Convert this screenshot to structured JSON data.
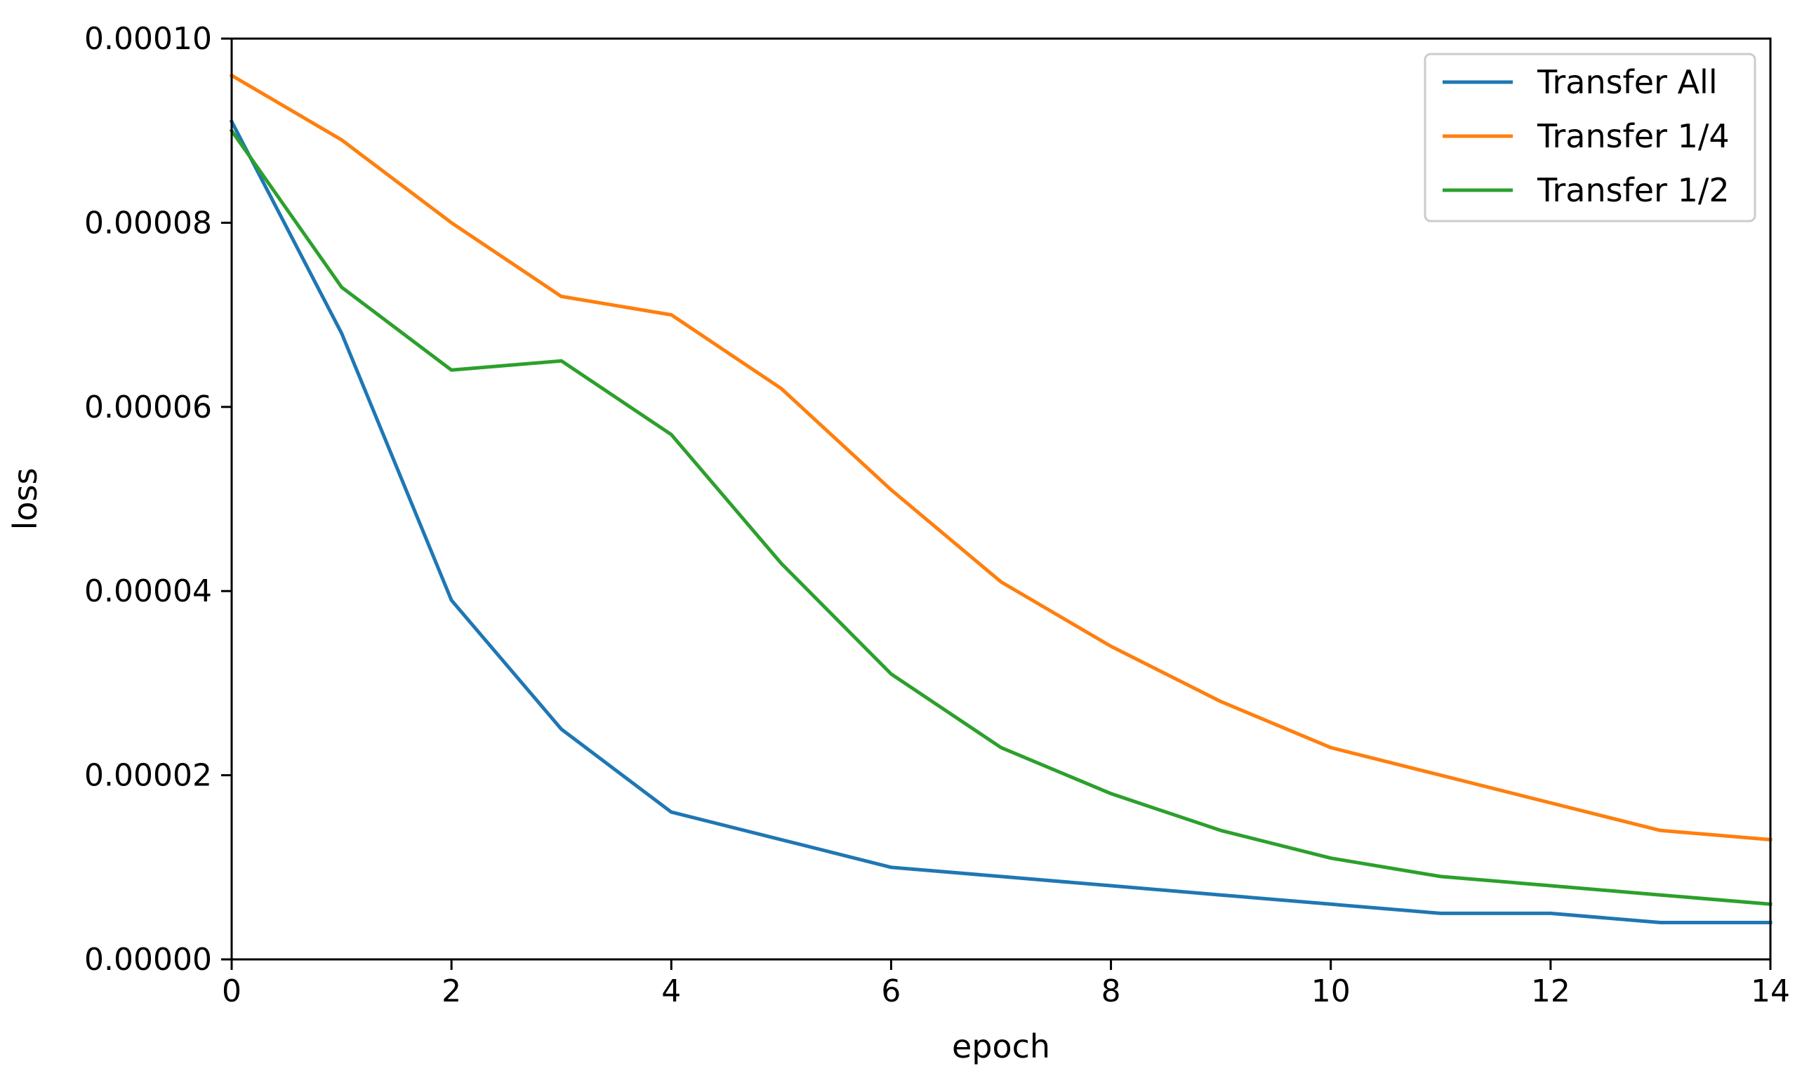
{
  "chart_data": {
    "type": "line",
    "title": "",
    "xlabel": "epoch",
    "ylabel": "loss",
    "xlim": [
      0,
      14
    ],
    "ylim": [
      0,
      0.0001
    ],
    "x_ticks": [
      "0",
      "2",
      "4",
      "6",
      "8",
      "10",
      "12",
      "14"
    ],
    "y_ticks": [
      "0.00000",
      "0.00002",
      "0.00004",
      "0.00006",
      "0.00008",
      "0.00010"
    ],
    "grid": false,
    "legend_position": "upper right",
    "x": [
      0,
      1,
      2,
      3,
      4,
      5,
      6,
      7,
      8,
      9,
      10,
      11,
      12,
      13,
      14
    ],
    "series": [
      {
        "name": "Transfer All",
        "color": "#1f77b4",
        "values": [
          9.1e-05,
          6.8e-05,
          3.9e-05,
          2.5e-05,
          1.6e-05,
          1.3e-05,
          1e-05,
          9e-06,
          8e-06,
          7e-06,
          6e-06,
          5e-06,
          5e-06,
          4e-06,
          4e-06
        ]
      },
      {
        "name": "Transfer 1/4",
        "color": "#ff7f0e",
        "values": [
          9.6e-05,
          8.9e-05,
          8e-05,
          7.2e-05,
          7e-05,
          6.2e-05,
          5.1e-05,
          4.1e-05,
          3.4e-05,
          2.8e-05,
          2.3e-05,
          2e-05,
          1.7e-05,
          1.4e-05,
          1.3e-05
        ]
      },
      {
        "name": "Transfer 1/2",
        "color": "#2ca02c",
        "values": [
          9e-05,
          7.3e-05,
          6.4e-05,
          6.5e-05,
          5.7e-05,
          4.3e-05,
          3.1e-05,
          2.3e-05,
          1.8e-05,
          1.4e-05,
          1.1e-05,
          9e-06,
          8e-06,
          7e-06,
          6e-06
        ]
      }
    ]
  }
}
